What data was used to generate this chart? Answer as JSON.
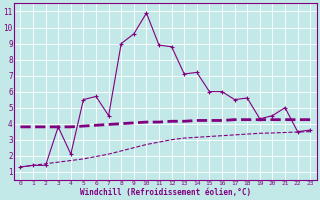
{
  "xlabel": "Windchill (Refroidissement éolien,°C)",
  "background_color": "#c2e8e8",
  "line_color": "#800080",
  "grid_color": "#ffffff",
  "x_ticks": [
    0,
    1,
    2,
    3,
    4,
    5,
    6,
    7,
    8,
    9,
    10,
    11,
    12,
    13,
    14,
    15,
    16,
    17,
    18,
    19,
    20,
    21,
    22,
    23
  ],
  "y_ticks": [
    1,
    2,
    3,
    4,
    5,
    6,
    7,
    8,
    9,
    10,
    11
  ],
  "ylim": [
    0.5,
    11.5
  ],
  "xlim": [
    -0.5,
    23.5
  ],
  "line1_x": [
    0,
    1,
    2,
    3,
    4,
    5,
    6,
    7,
    8,
    9,
    10,
    11,
    12,
    13,
    14,
    15,
    16,
    17,
    18,
    19,
    20,
    21,
    22,
    23
  ],
  "line1_y": [
    1.3,
    1.4,
    1.4,
    3.8,
    2.1,
    5.5,
    5.7,
    4.5,
    9.0,
    9.6,
    10.9,
    8.9,
    8.8,
    7.1,
    7.2,
    6.0,
    6.0,
    5.5,
    5.6,
    4.3,
    4.5,
    5.0,
    3.5,
    3.6
  ],
  "line2_x": [
    0,
    1,
    2,
    3,
    4,
    5,
    6,
    7,
    8,
    9,
    10,
    11,
    12,
    13,
    14,
    15,
    16,
    17,
    18,
    19,
    20,
    21,
    22,
    23
  ],
  "line2_y": [
    3.8,
    3.8,
    3.8,
    3.8,
    3.8,
    3.85,
    3.9,
    3.95,
    4.0,
    4.05,
    4.1,
    4.1,
    4.15,
    4.15,
    4.2,
    4.2,
    4.2,
    4.25,
    4.25,
    4.25,
    4.25,
    4.25,
    4.25,
    4.25
  ],
  "line3_x": [
    0,
    1,
    2,
    3,
    4,
    5,
    6,
    7,
    8,
    9,
    10,
    11,
    12,
    13,
    14,
    15,
    16,
    17,
    18,
    19,
    20,
    21,
    22,
    23
  ],
  "line3_y": [
    1.3,
    1.4,
    1.5,
    1.6,
    1.7,
    1.8,
    1.95,
    2.1,
    2.3,
    2.5,
    2.7,
    2.85,
    3.0,
    3.1,
    3.15,
    3.2,
    3.25,
    3.3,
    3.35,
    3.4,
    3.42,
    3.45,
    3.48,
    3.5
  ]
}
